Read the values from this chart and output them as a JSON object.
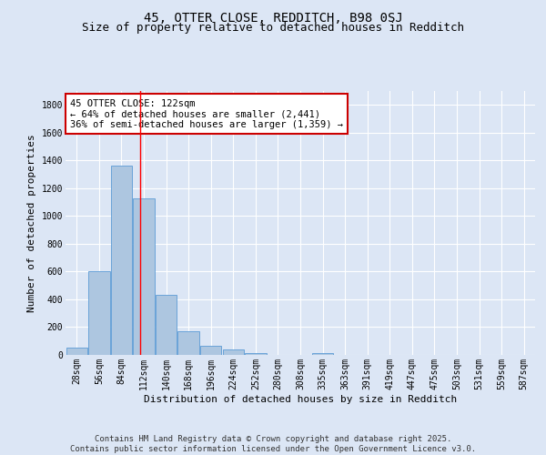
{
  "title": "45, OTTER CLOSE, REDDITCH, B98 0SJ",
  "subtitle": "Size of property relative to detached houses in Redditch",
  "xlabel": "Distribution of detached houses by size in Redditch",
  "ylabel": "Number of detached properties",
  "footer_line1": "Contains HM Land Registry data © Crown copyright and database right 2025.",
  "footer_line2": "Contains public sector information licensed under the Open Government Licence v3.0.",
  "categories": [
    "28sqm",
    "56sqm",
    "84sqm",
    "112sqm",
    "140sqm",
    "168sqm",
    "196sqm",
    "224sqm",
    "252sqm",
    "280sqm",
    "308sqm",
    "335sqm",
    "363sqm",
    "391sqm",
    "419sqm",
    "447sqm",
    "475sqm",
    "503sqm",
    "531sqm",
    "559sqm",
    "587sqm"
  ],
  "values": [
    50,
    600,
    1360,
    1125,
    430,
    170,
    65,
    40,
    10,
    0,
    0,
    15,
    0,
    0,
    0,
    0,
    0,
    0,
    0,
    0,
    0
  ],
  "bar_color": "#adc6e0",
  "bar_edge_color": "#5b9bd5",
  "ylim": [
    0,
    1900
  ],
  "yticks": [
    0,
    200,
    400,
    600,
    800,
    1000,
    1200,
    1400,
    1600,
    1800
  ],
  "red_line_x": 2.85,
  "annotation_text": "45 OTTER CLOSE: 122sqm\n← 64% of detached houses are smaller (2,441)\n36% of semi-detached houses are larger (1,359) →",
  "annotation_box_facecolor": "#ffffff",
  "annotation_box_edgecolor": "#cc0000",
  "background_color": "#dce6f5",
  "grid_color": "#ffffff",
  "title_fontsize": 10,
  "subtitle_fontsize": 9,
  "axis_label_fontsize": 8,
  "tick_fontsize": 7,
  "annotation_fontsize": 7.5,
  "footer_fontsize": 6.5
}
